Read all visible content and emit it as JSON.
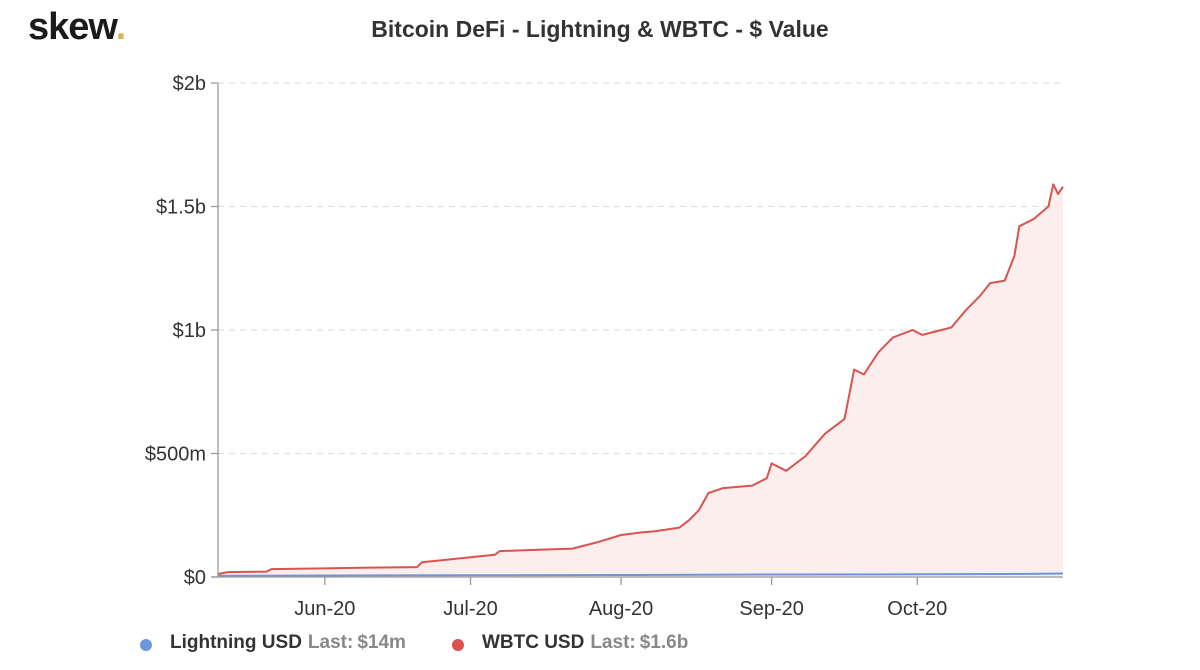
{
  "logo": {
    "text": "skew",
    "dot": "."
  },
  "chart_data": {
    "type": "area",
    "title": "Bitcoin DeFi - Lightning & WBTC - $ Value",
    "xlabel": "",
    "ylabel": "",
    "x_range": [
      "2020-05-10",
      "2020-10-31"
    ],
    "ylim": [
      0,
      2000000000
    ],
    "y_ticks": [
      {
        "value": 0,
        "label": "$0"
      },
      {
        "value": 500000000,
        "label": "$500m"
      },
      {
        "value": 1000000000,
        "label": "$1b"
      },
      {
        "value": 1500000000,
        "label": "$1.5b"
      },
      {
        "value": 2000000000,
        "label": "$2b"
      }
    ],
    "x_ticks": [
      {
        "date": "2020-06-01",
        "label": "Jun-20"
      },
      {
        "date": "2020-07-01",
        "label": "Jul-20"
      },
      {
        "date": "2020-08-01",
        "label": "Aug-20"
      },
      {
        "date": "2020-09-01",
        "label": "Sep-20"
      },
      {
        "date": "2020-10-01",
        "label": "Oct-20"
      }
    ],
    "grid": "horizontal dashed",
    "legend_position": "bottom-left",
    "series": [
      {
        "name": "Lightning USD",
        "color": "#6d95dc",
        "last": "$14m",
        "points": [
          [
            "2020-05-10",
            5000000
          ],
          [
            "2020-06-01",
            6000000
          ],
          [
            "2020-07-01",
            7000000
          ],
          [
            "2020-08-01",
            8000000
          ],
          [
            "2020-09-01",
            10000000
          ],
          [
            "2020-10-01",
            11000000
          ],
          [
            "2020-10-20",
            12000000
          ],
          [
            "2020-10-31",
            14000000
          ]
        ]
      },
      {
        "name": "WBTC USD",
        "color": "#d9534f",
        "fill": "#fdeeee",
        "last": "$1.6b",
        "points": [
          [
            "2020-05-10",
            12000000
          ],
          [
            "2020-05-12",
            20000000
          ],
          [
            "2020-05-20",
            22000000
          ],
          [
            "2020-05-21",
            32000000
          ],
          [
            "2020-06-01",
            35000000
          ],
          [
            "2020-06-10",
            38000000
          ],
          [
            "2020-06-20",
            40000000
          ],
          [
            "2020-06-21",
            60000000
          ],
          [
            "2020-07-01",
            80000000
          ],
          [
            "2020-07-06",
            90000000
          ],
          [
            "2020-07-07",
            105000000
          ],
          [
            "2020-07-15",
            110000000
          ],
          [
            "2020-07-22",
            115000000
          ],
          [
            "2020-07-27",
            140000000
          ],
          [
            "2020-08-01",
            170000000
          ],
          [
            "2020-08-05",
            180000000
          ],
          [
            "2020-08-08",
            185000000
          ],
          [
            "2020-08-13",
            200000000
          ],
          [
            "2020-08-15",
            230000000
          ],
          [
            "2020-08-17",
            270000000
          ],
          [
            "2020-08-19",
            340000000
          ],
          [
            "2020-08-22",
            360000000
          ],
          [
            "2020-08-28",
            370000000
          ],
          [
            "2020-08-31",
            400000000
          ],
          [
            "2020-09-01",
            460000000
          ],
          [
            "2020-09-04",
            430000000
          ],
          [
            "2020-09-08",
            490000000
          ],
          [
            "2020-09-12",
            580000000
          ],
          [
            "2020-09-16",
            640000000
          ],
          [
            "2020-09-18",
            840000000
          ],
          [
            "2020-09-20",
            820000000
          ],
          [
            "2020-09-23",
            910000000
          ],
          [
            "2020-09-26",
            970000000
          ],
          [
            "2020-09-30",
            1000000000
          ],
          [
            "2020-10-02",
            980000000
          ],
          [
            "2020-10-08",
            1010000000
          ],
          [
            "2020-10-11",
            1080000000
          ],
          [
            "2020-10-14",
            1140000000
          ],
          [
            "2020-10-16",
            1190000000
          ],
          [
            "2020-10-19",
            1200000000
          ],
          [
            "2020-10-21",
            1300000000
          ],
          [
            "2020-10-22",
            1420000000
          ],
          [
            "2020-10-25",
            1450000000
          ],
          [
            "2020-10-28",
            1500000000
          ],
          [
            "2020-10-29",
            1590000000
          ],
          [
            "2020-10-30",
            1550000000
          ],
          [
            "2020-10-31",
            1580000000
          ]
        ]
      }
    ]
  }
}
